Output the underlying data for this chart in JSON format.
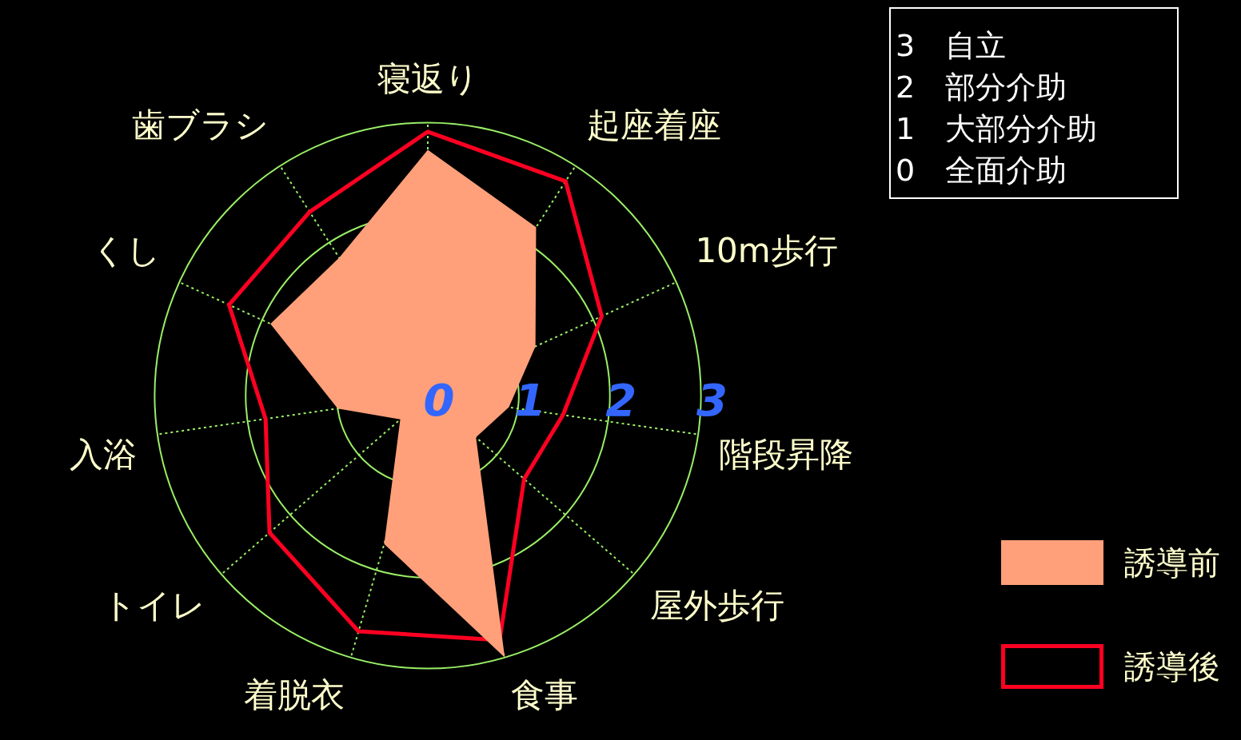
{
  "chart_data": {
    "type": "radar",
    "categories": [
      "寝返り",
      "起座着座",
      "10m歩行",
      "階段昇降",
      "屋外歩行",
      "食事",
      "着脱衣",
      "トイレ",
      "入浴",
      "くし",
      "歯ブラシ"
    ],
    "series": [
      {
        "name": "誘導前",
        "color": "#ffa07a",
        "type": "area",
        "values": [
          2.7,
          2.2,
          1.3,
          0.9,
          0.7,
          3.0,
          1.7,
          0.4,
          1.0,
          1.9,
          1.8
        ]
      },
      {
        "name": "誘導後",
        "color": "#ff0022",
        "values": [
          2.9,
          2.8,
          2.1,
          1.5,
          1.4,
          2.8,
          2.7,
          2.3,
          1.8,
          2.4,
          2.4
        ]
      }
    ],
    "ylim": [
      0,
      3
    ],
    "yticks": [
      0,
      1,
      2,
      3
    ],
    "grid": true,
    "legend": "bottom right",
    "marker": "none",
    "annotations": [
      "3　自立",
      "2　部分介助",
      "1　大部分介助",
      "0　全面介助"
    ]
  }
}
